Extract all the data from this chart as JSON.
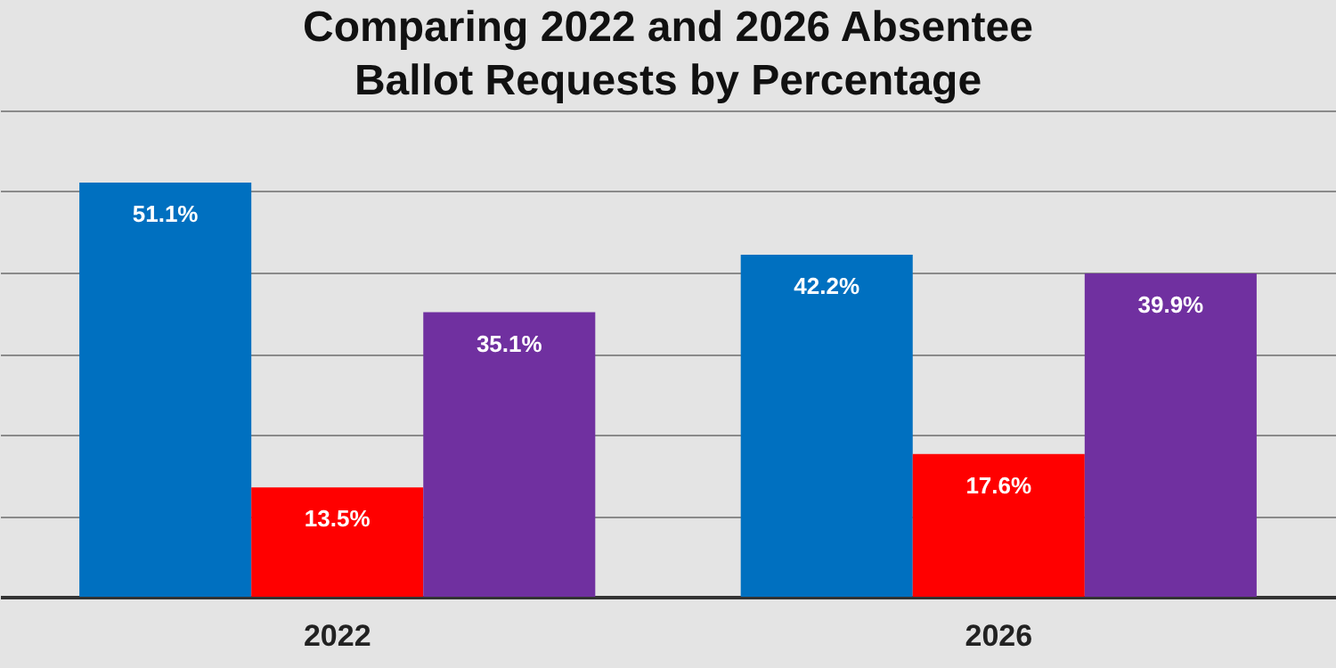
{
  "chart_data": {
    "type": "bar",
    "title": "Comparing 2022 and 2026 Absentee Ballot Requests by Percentage",
    "categories": [
      "2022",
      "2026"
    ],
    "series": [
      {
        "color": "#0070c0",
        "values": [
          51.1,
          42.2
        ],
        "value_labels": [
          "51.1%",
          "42.2%"
        ]
      },
      {
        "color": "#ff0000",
        "values": [
          13.5,
          17.6
        ],
        "value_labels": [
          "13.5%",
          "17.6%"
        ]
      },
      {
        "color": "#7030a0",
        "values": [
          35.1,
          39.9
        ],
        "value_labels": [
          "35.1%",
          "39.9%"
        ]
      }
    ],
    "ylim": [
      0,
      60
    ],
    "yticks": [
      {
        "value": 0,
        "label": null
      },
      {
        "value": 10,
        "label": null
      },
      {
        "value": 20,
        "label": null
      },
      {
        "value": 30,
        "label": null
      },
      {
        "value": 40,
        "label": null
      },
      {
        "value": 50,
        "label": null
      },
      {
        "value": 60,
        "label": null
      }
    ],
    "grid": "y",
    "legend": false,
    "tick_labels": "x"
  }
}
